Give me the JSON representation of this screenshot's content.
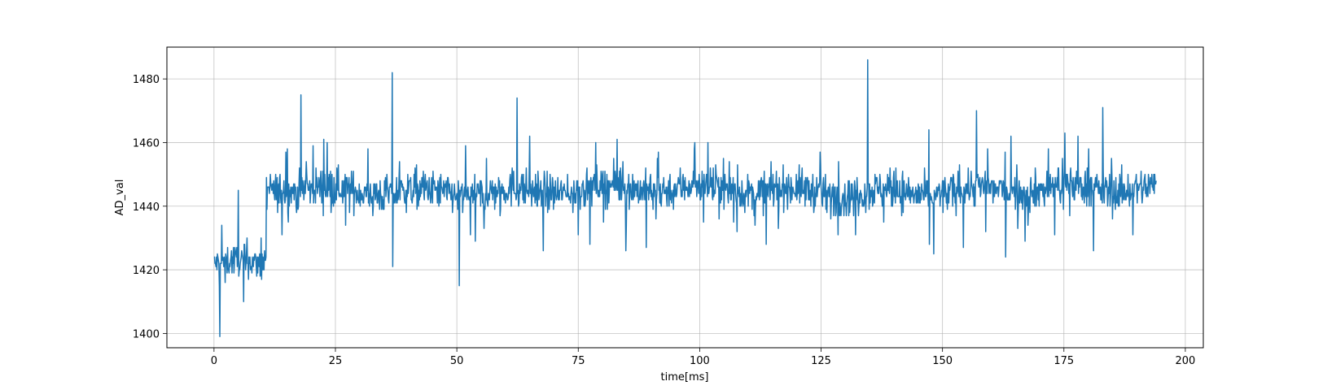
{
  "chart_data": {
    "type": "line",
    "title": "",
    "xlabel": "time[ms]",
    "ylabel": "AD_val",
    "xlim": [
      -9.7,
      203.7
    ],
    "ylim": [
      1395.5,
      1490.0
    ],
    "x_ticks": [
      0,
      25,
      50,
      75,
      100,
      125,
      150,
      175,
      200
    ],
    "y_ticks": [
      1400,
      1420,
      1440,
      1460,
      1480
    ],
    "grid": true,
    "legend": "none",
    "series": [
      {
        "color": "#1f77b4",
        "x_range": [
          0,
          194
        ],
        "sample_step_ms": 0.1,
        "segments": [
          {
            "x_start": 0,
            "x_end": 10.7,
            "mean": 1421,
            "spread": 4.5,
            "min": 1399,
            "max": 1445
          },
          {
            "x_start": 10.7,
            "x_end": 194,
            "mean": 1445,
            "spread": 5.5,
            "min": 1415,
            "max": 1486
          }
        ],
        "notable_points": [
          {
            "x": 1.2,
            "y": 1399
          },
          {
            "x": 5.0,
            "y": 1445
          },
          {
            "x": 17.9,
            "y": 1475
          },
          {
            "x": 36.7,
            "y": 1482
          },
          {
            "x": 36.8,
            "y": 1421
          },
          {
            "x": 50.5,
            "y": 1415
          },
          {
            "x": 62.4,
            "y": 1474
          },
          {
            "x": 134.6,
            "y": 1486
          },
          {
            "x": 157.0,
            "y": 1470
          },
          {
            "x": 183.0,
            "y": 1471
          }
        ]
      }
    ]
  }
}
